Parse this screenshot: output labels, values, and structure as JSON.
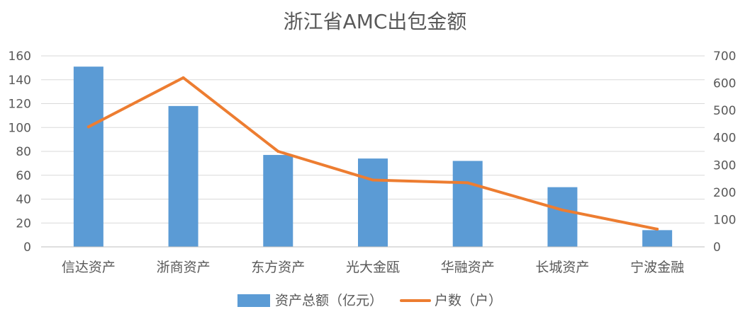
{
  "chart_data": {
    "type": "bar+line",
    "title": "浙江省AMC出包金额",
    "categories": [
      "信达资产",
      "浙商资产",
      "东方资产",
      "光大金瓯",
      "华融资产",
      "长城资产",
      "宁波金融"
    ],
    "series": [
      {
        "name": "资产总额（亿元）",
        "type": "bar",
        "axis": "left",
        "color": "#5b9bd5",
        "values": [
          151,
          118,
          77,
          74,
          72,
          50,
          14
        ]
      },
      {
        "name": "户数（户）",
        "type": "line",
        "axis": "right",
        "color": "#ed7d31",
        "values": [
          440,
          620,
          350,
          245,
          235,
          135,
          65
        ]
      }
    ],
    "y_left": {
      "range": [
        0,
        160
      ],
      "ticks": [
        "0",
        "20",
        "40",
        "60",
        "80",
        "100",
        "120",
        "140",
        "160"
      ]
    },
    "y_right": {
      "range": [
        0,
        700
      ],
      "ticks": [
        "0",
        "100",
        "200",
        "300",
        "400",
        "500",
        "600",
        "700"
      ]
    },
    "grid": true,
    "legend_position": "bottom"
  }
}
